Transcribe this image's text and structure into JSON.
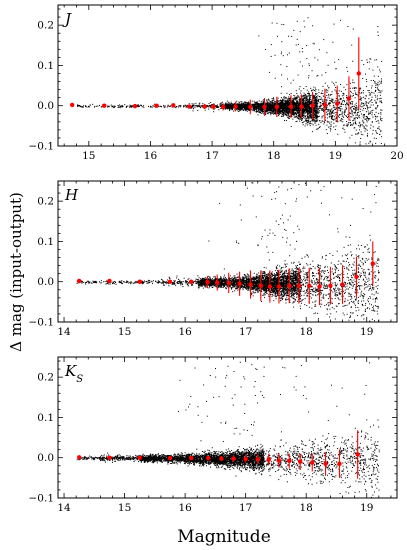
{
  "xlabel": "Magnitude",
  "ylabel": "Δ mag (input-output)",
  "colors": {
    "points": "#000000",
    "binned": "#ff0000",
    "axes": "#000000"
  },
  "chart_data": [
    {
      "type": "scatter",
      "panel_label": "J",
      "xlim": [
        14.5,
        20.0
      ],
      "ylim": [
        -0.1,
        0.25
      ],
      "xticks": [
        "15",
        "16",
        "17",
        "18",
        "19",
        "20"
      ],
      "xtick_values": [
        15,
        16,
        17,
        18,
        19,
        20
      ],
      "yticks": [
        "−0.1",
        "0.0",
        "0.1",
        "0.2"
      ],
      "ytick_values": [
        -0.1,
        0.0,
        0.1,
        0.2
      ],
      "scatter_cloud": {
        "mag_start": 17.2,
        "mag_peak": 18.7,
        "mag_end": 19.75,
        "spread_bright": 0.004,
        "spread_faint": 0.05,
        "outlier_ymax": 0.22
      },
      "series": [
        {
          "x": [
            14.73,
            15.25,
            15.75,
            16.1,
            16.37,
            16.63,
            16.88,
            17.02,
            17.18,
            17.38,
            17.62,
            17.85,
            18.05,
            18.28,
            18.45,
            18.63,
            18.83,
            19.03,
            19.22,
            19.38
          ],
          "y": [
            0.002,
            0.0,
            -0.001,
            0.0,
            0.001,
            -0.002,
            -0.002,
            -0.002,
            -0.003,
            -0.002,
            -0.003,
            -0.003,
            -0.003,
            -0.002,
            -0.002,
            0.0,
            0.002,
            0.005,
            0.018,
            0.08
          ],
          "err": [
            0.003,
            0.003,
            0.003,
            0.003,
            0.004,
            0.005,
            0.006,
            0.007,
            0.009,
            0.012,
            0.018,
            0.022,
            0.025,
            0.028,
            0.03,
            0.034,
            0.04,
            0.045,
            0.055,
            0.09
          ]
        }
      ]
    },
    {
      "type": "scatter",
      "panel_label": "H",
      "xlim": [
        13.9,
        19.5
      ],
      "ylim": [
        -0.1,
        0.25
      ],
      "xticks": [
        "14",
        "15",
        "16",
        "17",
        "18",
        "19"
      ],
      "xtick_values": [
        14,
        15,
        16,
        17,
        18,
        19
      ],
      "yticks": [
        "−0.1",
        "0.0",
        "0.1",
        "0.2"
      ],
      "ytick_values": [
        -0.1,
        0.0,
        0.1,
        0.2
      ],
      "scatter_cloud": {
        "mag_start": 16.2,
        "mag_peak": 17.9,
        "mag_end": 19.2,
        "spread_bright": 0.005,
        "spread_faint": 0.06,
        "outlier_ymax": 0.25
      },
      "series": [
        {
          "x": [
            14.25,
            14.75,
            15.25,
            15.75,
            16.1,
            16.37,
            16.53,
            16.72,
            16.9,
            17.08,
            17.25,
            17.4,
            17.55,
            17.72,
            17.88,
            18.05,
            18.22,
            18.4,
            18.6,
            18.83,
            19.1
          ],
          "y": [
            0.002,
            0.002,
            0.0,
            0.0,
            0.0,
            -0.001,
            -0.002,
            -0.003,
            -0.005,
            -0.007,
            -0.01,
            -0.012,
            -0.012,
            -0.01,
            -0.01,
            -0.01,
            -0.012,
            -0.01,
            -0.007,
            0.012,
            0.045
          ],
          "err": [
            0.003,
            0.003,
            0.003,
            0.004,
            0.005,
            0.015,
            0.02,
            0.025,
            0.03,
            0.035,
            0.038,
            0.04,
            0.042,
            0.043,
            0.044,
            0.045,
            0.046,
            0.047,
            0.048,
            0.05,
            0.055
          ]
        }
      ]
    },
    {
      "type": "scatter",
      "panel_label": "K_S",
      "xlim": [
        13.9,
        19.5
      ],
      "ylim": [
        -0.1,
        0.25
      ],
      "xticks": [
        "14",
        "15",
        "16",
        "17",
        "18",
        "19"
      ],
      "xtick_values": [
        14,
        15,
        16,
        17,
        18,
        19
      ],
      "yticks": [
        "−0.1",
        "0.0",
        "0.1",
        "0.2"
      ],
      "ytick_values": [
        -0.1,
        0.0,
        0.1,
        0.2
      ],
      "scatter_cloud": {
        "mag_start": 15.2,
        "mag_peak": 17.3,
        "mag_end": 19.2,
        "spread_bright": 0.004,
        "spread_faint": 0.04,
        "outlier_ymax": 0.24
      },
      "series": [
        {
          "x": [
            14.25,
            14.75,
            15.25,
            15.75,
            16.1,
            16.38,
            16.6,
            16.8,
            17.0,
            17.2,
            17.38,
            17.55,
            17.72,
            17.9,
            18.1,
            18.32,
            18.55,
            18.85
          ],
          "y": [
            0.001,
            0.0,
            0.0,
            -0.001,
            -0.001,
            -0.001,
            -0.002,
            -0.002,
            -0.003,
            -0.004,
            -0.005,
            -0.007,
            -0.008,
            -0.01,
            -0.012,
            -0.015,
            -0.015,
            0.008
          ],
          "err": [
            0.003,
            0.003,
            0.003,
            0.003,
            0.004,
            0.005,
            0.006,
            0.008,
            0.01,
            0.012,
            0.014,
            0.016,
            0.018,
            0.02,
            0.022,
            0.028,
            0.035,
            0.06
          ]
        }
      ]
    }
  ]
}
